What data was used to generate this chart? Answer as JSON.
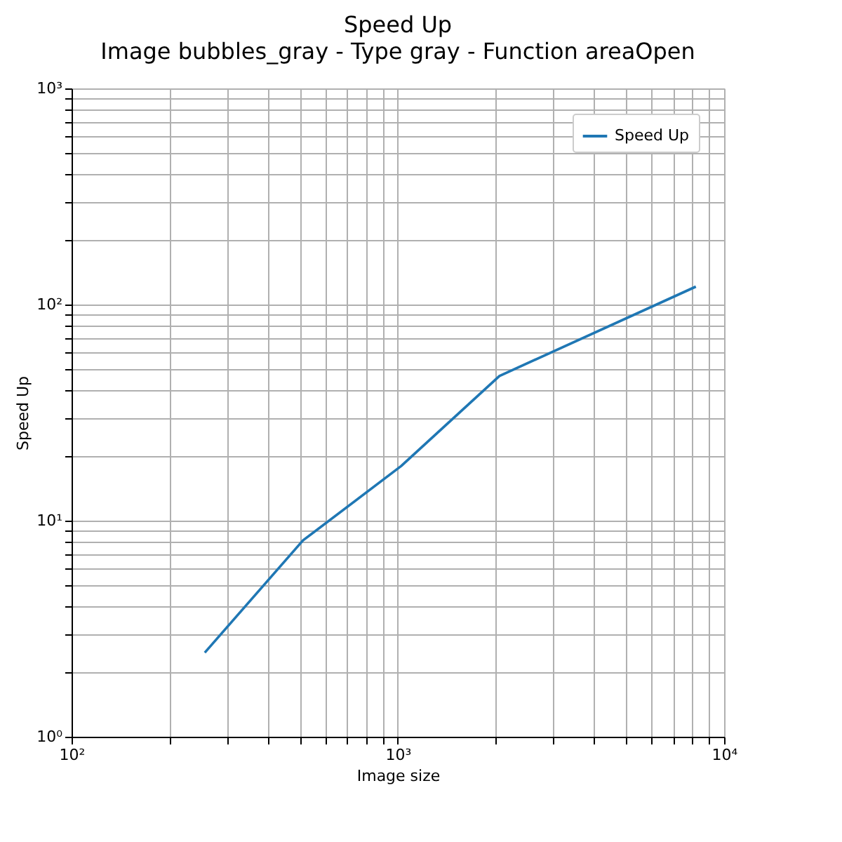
{
  "chart_data": {
    "type": "line",
    "title": "Speed Up",
    "subtitle": "Image bubbles_gray - Type gray - Function areaOpen",
    "xlabel": "Image size",
    "ylabel": "Speed Up",
    "x": [
      256,
      512,
      1024,
      2048,
      8192
    ],
    "series": [
      {
        "name": "Speed Up",
        "color": "#1f77b4",
        "values": [
          2.45,
          8.1,
          17.9,
          46.7,
          121
        ]
      }
    ],
    "log": "xy",
    "xlim": [
      100,
      10000
    ],
    "ylim": [
      1,
      1000
    ],
    "xticks": [
      {
        "value": 100,
        "label": "10²"
      },
      {
        "value": 200,
        "label": null
      },
      {
        "value": 300,
        "label": null
      },
      {
        "value": 400,
        "label": null
      },
      {
        "value": 500,
        "label": null
      },
      {
        "value": 600,
        "label": null
      },
      {
        "value": 700,
        "label": null
      },
      {
        "value": 800,
        "label": null
      },
      {
        "value": 900,
        "label": null
      },
      {
        "value": 1000,
        "label": "10³"
      },
      {
        "value": 2000,
        "label": null
      },
      {
        "value": 3000,
        "label": null
      },
      {
        "value": 4000,
        "label": null
      },
      {
        "value": 5000,
        "label": null
      },
      {
        "value": 6000,
        "label": null
      },
      {
        "value": 7000,
        "label": null
      },
      {
        "value": 8000,
        "label": null
      },
      {
        "value": 9000,
        "label": null
      },
      {
        "value": 10000,
        "label": "10⁴"
      }
    ],
    "yticks": [
      {
        "value": 1,
        "label": "10⁰"
      },
      {
        "value": 2,
        "label": null
      },
      {
        "value": 3,
        "label": null
      },
      {
        "value": 4,
        "label": null
      },
      {
        "value": 5,
        "label": null
      },
      {
        "value": 6,
        "label": null
      },
      {
        "value": 7,
        "label": null
      },
      {
        "value": 8,
        "label": null
      },
      {
        "value": 9,
        "label": null
      },
      {
        "value": 10,
        "label": "10¹"
      },
      {
        "value": 20,
        "label": null
      },
      {
        "value": 30,
        "label": null
      },
      {
        "value": 40,
        "label": null
      },
      {
        "value": 50,
        "label": null
      },
      {
        "value": 60,
        "label": null
      },
      {
        "value": 70,
        "label": null
      },
      {
        "value": 80,
        "label": null
      },
      {
        "value": 90,
        "label": null
      },
      {
        "value": 100,
        "label": "10²"
      },
      {
        "value": 200,
        "label": null
      },
      {
        "value": 300,
        "label": null
      },
      {
        "value": 400,
        "label": null
      },
      {
        "value": 500,
        "label": null
      },
      {
        "value": 600,
        "label": null
      },
      {
        "value": 700,
        "label": null
      },
      {
        "value": 800,
        "label": null
      },
      {
        "value": 900,
        "label": null
      },
      {
        "value": 1000,
        "label": "10³"
      }
    ],
    "grid": true,
    "legend": "top right",
    "marker": "none",
    "line_style": "solid"
  }
}
